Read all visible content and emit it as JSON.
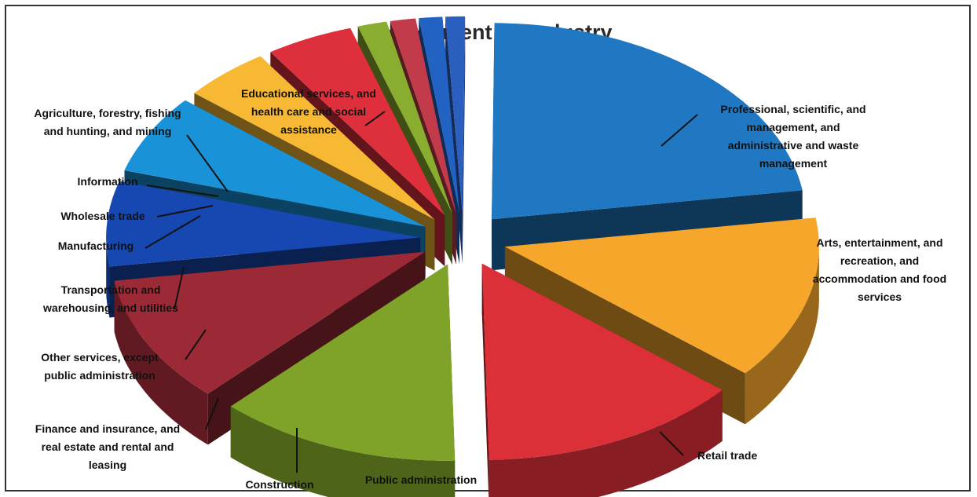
{
  "chart_data": {
    "type": "pie",
    "title": "Employment by Industry",
    "legend": "none",
    "slices": [
      {
        "label": "Educational services, and health care and social assistance",
        "value": 22.5,
        "color": "#1f78c1"
      },
      {
        "label": "Professional, scientific, and management, and administrative and waste management",
        "value": 13.5,
        "color": "#f5a62b"
      },
      {
        "label": "Arts, entertainment, and recreation, and accommodation and food services",
        "value": 13.5,
        "color": "#db3038"
      },
      {
        "label": "Retail trade",
        "value": 12.5,
        "color": "#7ea328"
      },
      {
        "label": "Public administration",
        "value": 10.5,
        "color": "#9c2a36"
      },
      {
        "label": "Construction",
        "value": 7.0,
        "color": "#1747b0"
      },
      {
        "label": "Finance and insurance, and real estate and rental and leasing",
        "value": 6.5,
        "color": "#1992d8"
      },
      {
        "label": "Other services, except public administration",
        "value": 4.5,
        "color": "#f7b934"
      },
      {
        "label": "Transportation and warehousing, and utilities",
        "value": 4.5,
        "color": "#dd2f3c"
      },
      {
        "label": "Manufacturing",
        "value": 1.5,
        "color": "#89ad2e"
      },
      {
        "label": "Wholesale trade",
        "value": 1.3,
        "color": "#c23b4a"
      },
      {
        "label": "Information",
        "value": 1.2,
        "color": "#2262c2"
      },
      {
        "label": "Agriculture, forestry, fishing and hunting, and mining",
        "value": 1.0,
        "color": "#2a5fbf"
      }
    ],
    "display_labels": [
      [
        "Educational services, and",
        "health care and social",
        "assistance"
      ],
      [
        "Professional, scientific, and",
        "management, and",
        "administrative and waste",
        "management"
      ],
      [
        "Arts, entertainment, and",
        "recreation, and",
        "accommodation and food",
        "services"
      ],
      [
        "Retail trade"
      ],
      [
        "Public administration"
      ],
      [
        "Construction"
      ],
      [
        "Finance and insurance, and",
        "real estate and rental and",
        "leasing"
      ],
      [
        "Other services, except",
        "public administration"
      ],
      [
        "Transportation and",
        "warehousing, and utilities"
      ],
      [
        "Manufacturing"
      ],
      [
        "Wholesale trade"
      ],
      [
        "Information"
      ],
      [
        "Agriculture, forestry, fishing",
        "and hunting, and mining"
      ]
    ]
  }
}
